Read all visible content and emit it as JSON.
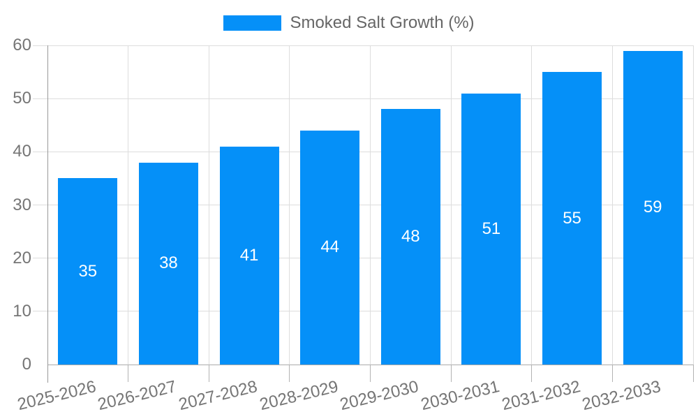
{
  "chart_data": {
    "type": "bar",
    "title": "",
    "legend_position": "top-center",
    "grid": true,
    "categories": [
      "2025-2026",
      "2026-2027",
      "2027-2028",
      "2028-2029",
      "2029-2030",
      "2030-2031",
      "2031-2032",
      "2032-2033"
    ],
    "series": [
      {
        "name": "Smoked Salt Growth (%)",
        "values": [
          35,
          38,
          41,
          44,
          48,
          51,
          55,
          59
        ]
      }
    ],
    "bar_value_labels": [
      "35",
      "38",
      "41",
      "44",
      "48",
      "51",
      "55",
      "59"
    ],
    "xlabel": "",
    "ylabel": "",
    "ylim": [
      0,
      60
    ],
    "yticks": [
      0,
      10,
      20,
      30,
      40,
      50,
      60
    ],
    "colors": {
      "bar": "#0590f8",
      "grid_line": "#dddddd",
      "y_axis_line": "#999999",
      "x_axis_line": "#aaaaaa",
      "x_tick": "#b3b3b3",
      "tick_label": "#757575",
      "legend_text": "#666666",
      "bar_value_label": "#ffffff",
      "background": "#ffffff"
    }
  }
}
